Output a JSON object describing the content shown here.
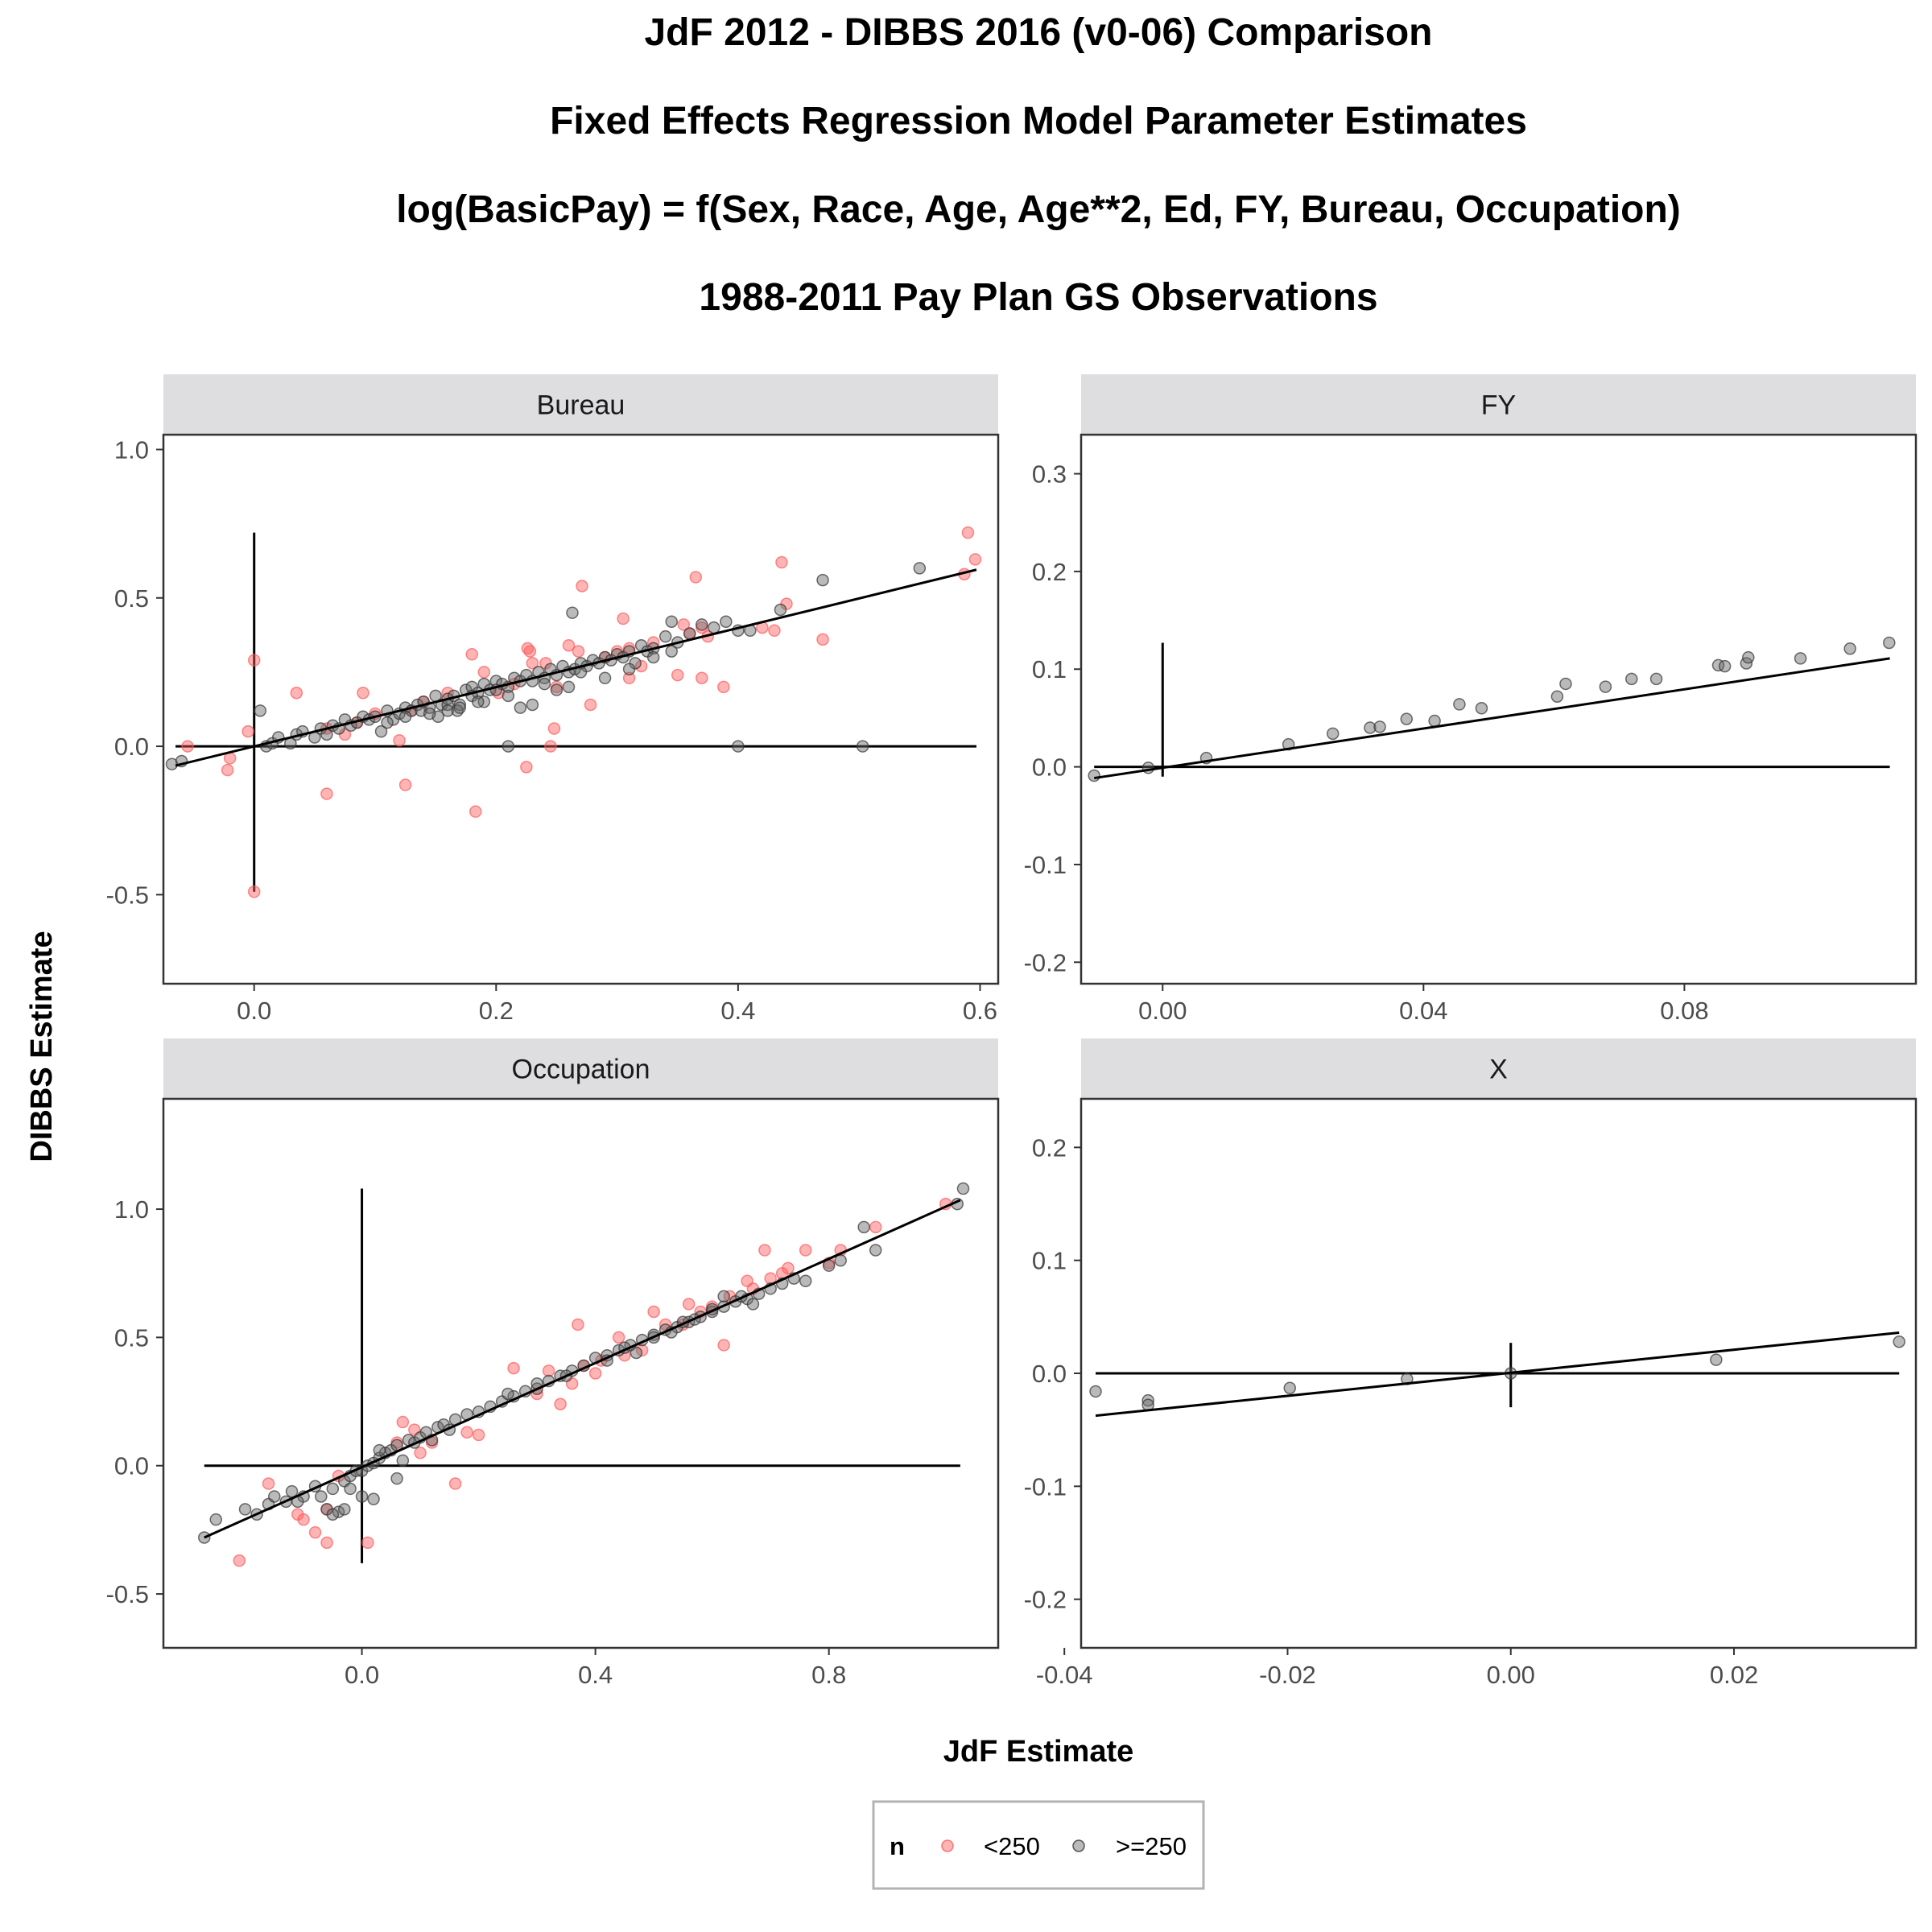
{
  "chart_data": {
    "type": "scatter",
    "title_lines": [
      "JdF 2012 - DIBBS 2016 (v0-06) Comparison",
      "Fixed Effects Regression Model Parameter Estimates",
      "log(BasicPay) = f(Sex, Race, Age, Age**2, Ed, FY, Bureau, Occupation)",
      "1988-2011 Pay Plan GS Observations"
    ],
    "xlabel": "JdF Estimate",
    "ylabel": "DIBBS Estimate",
    "legend": {
      "title": "n",
      "placement": "bottom",
      "entries": [
        {
          "label": "<250",
          "color": "#ff5a5a"
        },
        {
          "label": ">=250",
          "color": "#666666"
        }
      ]
    },
    "colors": {
      "lt250": "#ff5a5a",
      "ge250": "#666666",
      "strip_bg": "#dedde0",
      "line": "#000000"
    },
    "point_opacity": 0.45,
    "panels": [
      {
        "name": "Bureau",
        "xlim": [
          -0.075,
          0.615
        ],
        "ylim": [
          -0.8,
          1.05
        ],
        "xticks": [
          0.0,
          0.2,
          0.4,
          0.6
        ],
        "xtick_labels": [
          "0.0",
          "0.2",
          "0.4",
          "0.6"
        ],
        "yticks": [
          -0.5,
          0.0,
          0.5,
          1.0
        ],
        "ytick_labels": [
          "-0.5",
          "0.0",
          "0.5",
          "1.0"
        ],
        "fit_line": [
          [
            -0.065,
            -0.065
          ],
          [
            0.597,
            0.595
          ]
        ],
        "hline": {
          "y": 0,
          "x": [
            -0.065,
            0.597
          ]
        },
        "vline": {
          "x": 0,
          "y": [
            -0.49,
            0.72
          ]
        },
        "series": [
          {
            "name": "<250",
            "x": [
              0.59,
              0.596,
              0.587,
              0.44,
              0.436,
              0.47,
              0.365,
              0.37,
              0.388,
              0.36,
              0.35,
              0.305,
              0.31,
              0.271,
              0.268,
              0.26,
              0.25,
              0.241,
              0.226,
              0.228,
              0.18,
              0.19,
              0.202,
              0.1,
              0.09,
              0.12,
              0.125,
              0.035,
              0.0,
              -0.005,
              -0.055,
              -0.02,
              -0.022,
              0.06,
              0.183,
              0.225,
              0.245,
              0.248,
              0.278,
              0.32,
              0.37,
              0.23,
              0.215,
              0.16,
              0.14,
              0.13,
              0.085,
              0.06,
              0.075,
              0.0,
              0.33,
              0.29,
              0.31,
              0.42,
              0.43,
              0.355,
              0.375,
              0.3
            ],
            "y": [
              0.72,
              0.63,
              0.58,
              0.48,
              0.62,
              0.36,
              0.57,
              0.4,
              0.2,
              0.38,
              0.24,
              0.43,
              0.23,
              0.54,
              0.32,
              0.34,
              0.2,
              0.28,
              0.33,
              0.32,
              0.31,
              0.25,
              0.18,
              0.11,
              0.18,
              0.02,
              -0.13,
              0.18,
              0.29,
              0.05,
              0.0,
              -0.04,
              -0.08,
              -0.16,
              -0.22,
              -0.07,
              0.0,
              0.06,
              0.14,
              0.27,
              0.23,
              0.28,
              0.21,
              0.18,
              0.15,
              0.12,
              0.08,
              0.06,
              0.04,
              -0.49,
              0.35,
              0.3,
              0.33,
              0.4,
              0.39,
              0.41,
              0.37,
              0.32
            ]
          },
          {
            "name": ">=250",
            "x": [
              -0.068,
              -0.06,
              0.005,
              0.01,
              0.015,
              0.02,
              0.03,
              0.035,
              0.04,
              0.05,
              0.055,
              0.06,
              0.065,
              0.07,
              0.075,
              0.08,
              0.085,
              0.09,
              0.095,
              0.1,
              0.105,
              0.11,
              0.115,
              0.12,
              0.125,
              0.13,
              0.135,
              0.14,
              0.145,
              0.15,
              0.155,
              0.16,
              0.165,
              0.17,
              0.175,
              0.18,
              0.185,
              0.19,
              0.195,
              0.2,
              0.205,
              0.21,
              0.215,
              0.22,
              0.225,
              0.23,
              0.235,
              0.24,
              0.245,
              0.25,
              0.255,
              0.26,
              0.265,
              0.27,
              0.275,
              0.28,
              0.285,
              0.29,
              0.295,
              0.3,
              0.305,
              0.31,
              0.315,
              0.32,
              0.325,
              0.33,
              0.34,
              0.345,
              0.35,
              0.36,
              0.37,
              0.38,
              0.39,
              0.4,
              0.41,
              0.435,
              0.47,
              0.55,
              0.4,
              0.503,
              0.21,
              0.263,
              0.168,
              0.152,
              0.138,
              0.18,
              0.22,
              0.25,
              0.2,
              0.16,
              0.23,
              0.27,
              0.29,
              0.31,
              0.33,
              0.345,
              0.17,
              0.19,
              0.21,
              0.24,
              0.26,
              0.11,
              0.125,
              0.145,
              0.16,
              0.185
            ],
            "y": [
              -0.06,
              -0.05,
              0.12,
              0.0,
              0.01,
              0.03,
              0.01,
              0.04,
              0.05,
              0.03,
              0.06,
              0.04,
              0.07,
              0.06,
              0.09,
              0.07,
              0.08,
              0.1,
              0.09,
              0.1,
              0.05,
              0.12,
              0.09,
              0.11,
              0.13,
              0.12,
              0.14,
              0.15,
              0.13,
              0.17,
              0.14,
              0.16,
              0.17,
              0.14,
              0.19,
              0.2,
              0.18,
              0.21,
              0.19,
              0.22,
              0.21,
              0.2,
              0.23,
              0.22,
              0.24,
              0.22,
              0.25,
              0.23,
              0.26,
              0.24,
              0.27,
              0.25,
              0.26,
              0.28,
              0.27,
              0.29,
              0.28,
              0.3,
              0.29,
              0.31,
              0.3,
              0.32,
              0.28,
              0.34,
              0.32,
              0.33,
              0.37,
              0.42,
              0.35,
              0.38,
              0.41,
              0.4,
              0.42,
              0.39,
              0.39,
              0.46,
              0.56,
              0.6,
              0.0,
              0.0,
              0.0,
              0.45,
              0.12,
              0.1,
              0.12,
              0.17,
              0.13,
              0.19,
              0.19,
              0.14,
              0.14,
              0.25,
              0.23,
              0.26,
              0.3,
              0.32,
              0.13,
              0.15,
              0.17,
              0.21,
              0.2,
              0.08,
              0.1,
              0.11,
              0.12,
              0.15
            ]
          }
        ]
      },
      {
        "name": "FY",
        "xlim": [
          -0.0125,
          0.1155
        ],
        "ylim": [
          -0.222,
          0.34
        ],
        "xticks": [
          0.0,
          0.04,
          0.08
        ],
        "xtick_labels": [
          "0.00",
          "0.04",
          "0.08"
        ],
        "yticks": [
          -0.2,
          -0.1,
          0.0,
          0.1,
          0.2,
          0.3
        ],
        "ytick_labels": [
          "-0.2",
          "-0.1",
          "0.0",
          "0.1",
          "0.2",
          "0.3"
        ],
        "fit_line": [
          [
            -0.0105,
            -0.0115
          ],
          [
            0.1115,
            0.111
          ]
        ],
        "hline": {
          "y": 0,
          "x": [
            -0.0105,
            0.1115
          ]
        },
        "vline": {
          "x": 0,
          "y": [
            -0.01,
            0.127
          ]
        },
        "series": [
          {
            "name": "<250",
            "x": [],
            "y": []
          },
          {
            "name": ">=250",
            "x": [
              -0.0105,
              -0.0022,
              0.0067,
              0.0193,
              0.0261,
              0.0318,
              0.0333,
              0.0374,
              0.0417,
              0.0455,
              0.0489,
              0.0605,
              0.0618,
              0.0679,
              0.0719,
              0.0757,
              0.0852,
              0.0862,
              0.0895,
              0.0898,
              0.0978,
              0.1054,
              0.1114
            ],
            "y": [
              -0.009,
              -0.001,
              0.009,
              0.023,
              0.034,
              0.04,
              0.041,
              0.049,
              0.047,
              0.064,
              0.06,
              0.072,
              0.085,
              0.082,
              0.09,
              0.09,
              0.104,
              0.103,
              0.106,
              0.112,
              0.111,
              0.121,
              0.127
            ]
          }
        ]
      },
      {
        "name": "Occupation",
        "xlim": [
          -0.34,
          1.09
        ],
        "ylim": [
          -0.71,
          1.43
        ],
        "xticks": [
          0.0,
          0.4,
          0.8
        ],
        "xtick_labels": [
          "0.0",
          "0.4",
          "0.8"
        ],
        "yticks": [
          -0.5,
          0.0,
          0.5,
          1.0
        ],
        "ytick_labels": [
          "-0.5",
          "0.0",
          "0.5",
          "1.0"
        ],
        "fit_line": [
          [
            -0.27,
            -0.28
          ],
          [
            1.025,
            1.035
          ]
        ],
        "hline": {
          "y": 0,
          "x": [
            -0.27,
            1.025
          ]
        },
        "vline": {
          "x": 0,
          "y": [
            -0.38,
            1.08
          ]
        },
        "series": [
          {
            "name": "<250",
            "x": [
              -0.21,
              -0.16,
              -0.11,
              -0.1,
              -0.08,
              -0.06,
              -0.06,
              -0.04,
              0.01,
              0.07,
              0.1,
              0.12,
              0.16,
              0.18,
              0.2,
              0.26,
              0.32,
              0.37,
              0.41,
              0.45,
              0.5,
              0.55,
              0.6,
              0.62,
              0.66,
              0.69,
              0.72,
              0.76,
              0.8,
              0.82,
              0.88,
              1.0,
              0.34,
              0.38,
              0.48,
              0.58,
              0.63,
              0.7,
              0.06,
              0.09,
              0.3,
              0.36,
              0.4,
              0.44,
              0.52,
              0.56,
              0.67,
              0.73
            ],
            "y": [
              -0.37,
              -0.07,
              -0.19,
              -0.21,
              -0.26,
              -0.3,
              -0.17,
              -0.04,
              -0.3,
              0.17,
              0.05,
              0.09,
              -0.07,
              0.13,
              0.12,
              0.38,
              0.37,
              0.55,
              0.41,
              0.43,
              0.6,
              0.55,
              0.62,
              0.47,
              0.72,
              0.84,
              0.75,
              0.84,
              0.79,
              0.84,
              0.93,
              1.02,
              0.24,
              0.39,
              0.45,
              0.6,
              0.66,
              0.73,
              0.09,
              0.14,
              0.28,
              0.32,
              0.36,
              0.5,
              0.55,
              0.63,
              0.69,
              0.77
            ]
          },
          {
            "name": ">=250",
            "x": [
              -0.27,
              -0.25,
              -0.2,
              -0.18,
              -0.16,
              -0.15,
              -0.13,
              -0.12,
              -0.1,
              -0.08,
              -0.06,
              -0.05,
              -0.04,
              -0.03,
              -0.02,
              -0.01,
              0.0,
              0.01,
              0.02,
              0.03,
              0.04,
              0.05,
              0.06,
              0.08,
              0.09,
              0.1,
              0.11,
              0.13,
              0.14,
              0.16,
              0.18,
              0.2,
              0.22,
              0.24,
              0.26,
              0.28,
              0.3,
              0.32,
              0.34,
              0.36,
              0.38,
              0.4,
              0.42,
              0.44,
              0.46,
              0.48,
              0.5,
              0.52,
              0.54,
              0.56,
              0.58,
              0.6,
              0.62,
              0.64,
              0.66,
              0.68,
              0.7,
              0.72,
              0.74,
              0.76,
              0.8,
              0.82,
              0.86,
              0.88,
              1.02,
              1.03,
              -0.05,
              -0.03,
              0.0,
              0.02,
              0.06,
              0.07,
              0.45,
              0.5,
              0.55,
              0.6,
              0.65,
              0.67,
              0.35,
              0.42,
              0.47,
              0.53,
              0.57,
              0.62,
              0.25,
              0.3,
              0.15,
              0.12,
              0.03,
              -0.02,
              -0.07,
              -0.11
            ],
            "y": [
              -0.28,
              -0.21,
              -0.17,
              -0.19,
              -0.15,
              -0.12,
              -0.14,
              -0.1,
              -0.12,
              -0.08,
              -0.17,
              -0.09,
              -0.18,
              -0.06,
              -0.04,
              -0.02,
              -0.02,
              0.0,
              0.01,
              0.03,
              0.05,
              0.06,
              0.08,
              0.1,
              0.09,
              0.11,
              0.13,
              0.15,
              0.16,
              0.18,
              0.2,
              0.21,
              0.23,
              0.25,
              0.27,
              0.29,
              0.3,
              0.33,
              0.35,
              0.37,
              0.39,
              0.42,
              0.43,
              0.45,
              0.47,
              0.49,
              0.51,
              0.53,
              0.54,
              0.56,
              0.58,
              0.6,
              0.62,
              0.64,
              0.65,
              0.67,
              0.69,
              0.71,
              0.73,
              0.72,
              0.78,
              0.8,
              0.93,
              0.84,
              1.02,
              1.08,
              -0.19,
              -0.17,
              -0.12,
              -0.13,
              -0.05,
              0.02,
              0.46,
              0.5,
              0.56,
              0.61,
              0.66,
              0.63,
              0.35,
              0.41,
              0.44,
              0.52,
              0.57,
              0.66,
              0.28,
              0.32,
              0.14,
              0.1,
              0.06,
              -0.09,
              -0.12,
              -0.14
            ]
          }
        ]
      },
      {
        "name": "X",
        "xlim": [
          -0.0385,
          0.0363
        ],
        "ylim": [
          -0.243,
          0.243
        ],
        "xticks": [
          -0.04,
          -0.02,
          0.0,
          0.02
        ],
        "xtick_labels": [
          "-0.04",
          "-0.02",
          "0.00",
          "0.02"
        ],
        "yticks": [
          -0.2,
          -0.1,
          0.0,
          0.1,
          0.2
        ],
        "ytick_labels": [
          "-0.2",
          "-0.1",
          "0.0",
          "0.1",
          "0.2"
        ],
        "fit_line": [
          [
            -0.0372,
            -0.0375
          ],
          [
            0.0348,
            0.036
          ]
        ],
        "hline": {
          "y": 0,
          "x": [
            -0.0372,
            0.0348
          ]
        },
        "vline": {
          "x": 0,
          "y": [
            -0.03,
            0.027
          ]
        },
        "series": [
          {
            "name": "<250",
            "x": [],
            "y": []
          },
          {
            "name": ">=250",
            "x": [
              -0.0372,
              -0.0325,
              -0.0325,
              -0.0198,
              -0.0093,
              0.0,
              0.0184,
              0.0348
            ],
            "y": [
              -0.016,
              -0.024,
              -0.028,
              -0.013,
              -0.005,
              0.0,
              0.012,
              0.028
            ]
          }
        ]
      }
    ]
  }
}
